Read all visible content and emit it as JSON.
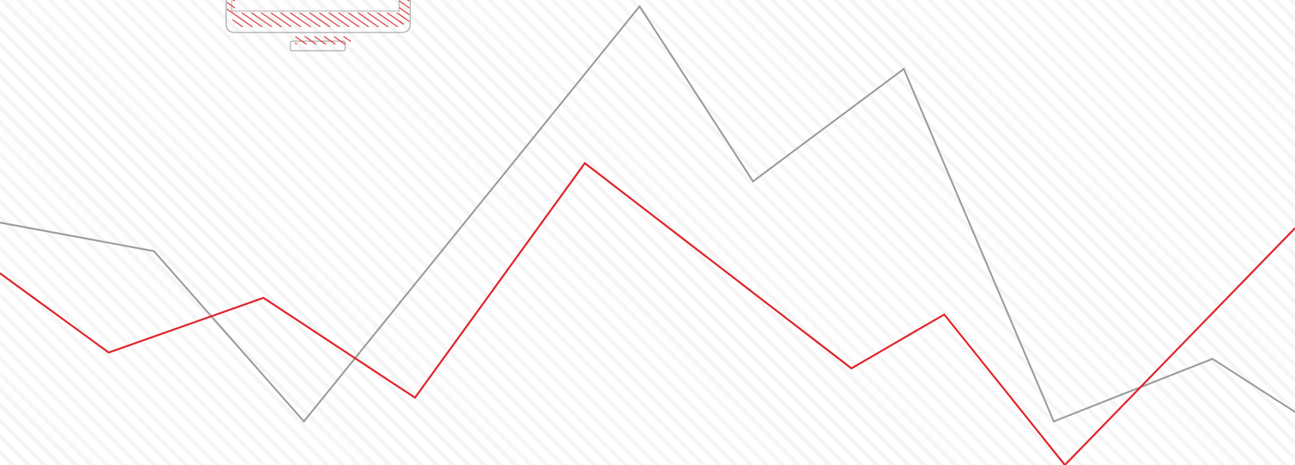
{
  "background": {
    "base_color": "#ffffff",
    "stripe_color": "#ececec",
    "pattern": "diagonal-stripes"
  },
  "illustration": {
    "name": "monitor-illustration",
    "outline_color": "#a8a8a8",
    "hatch_color": "#e0393e"
  },
  "lines": [
    {
      "name": "gray-line",
      "color": "#9a9a9a"
    },
    {
      "name": "red-line",
      "color": "#e0262c"
    }
  ]
}
